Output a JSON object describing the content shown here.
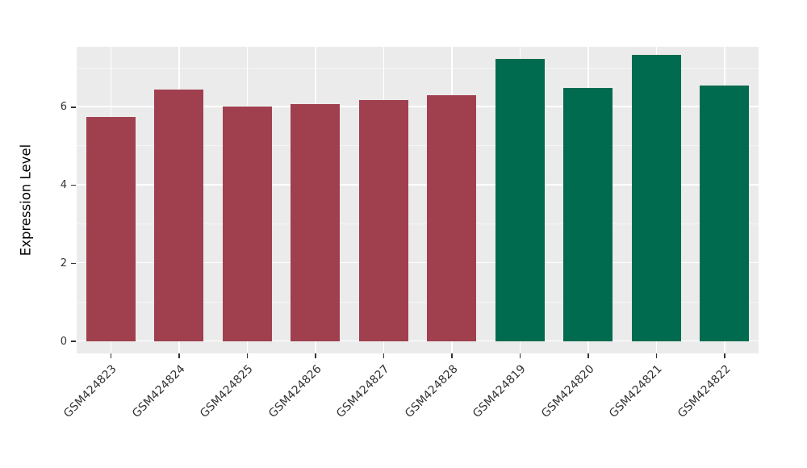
{
  "chart_data": {
    "type": "bar",
    "title": "",
    "xlabel": "",
    "ylabel": "Expression Level",
    "categories": [
      "GSM424823",
      "GSM424824",
      "GSM424825",
      "GSM424826",
      "GSM424827",
      "GSM424828",
      "GSM424819",
      "GSM424820",
      "GSM424821",
      "GSM424822"
    ],
    "values": [
      5.75,
      6.45,
      6.02,
      6.08,
      6.18,
      6.3,
      7.25,
      6.5,
      7.35,
      6.55
    ],
    "bar_colors": [
      "#A0404E",
      "#A0404E",
      "#A0404E",
      "#A0404E",
      "#A0404E",
      "#A0404E",
      "#006B4F",
      "#006B4F",
      "#006B4F",
      "#006B4F"
    ],
    "group_colors": {
      "left_group": "#A0404E",
      "right_group": "#006B4F"
    },
    "ylim": [
      0,
      7.55
    ],
    "yticks": [
      0,
      2,
      4,
      6
    ],
    "yticks_minor": [
      1,
      3,
      5,
      7
    ],
    "grid": true,
    "legend": false,
    "panel_background": "#EBEBEB",
    "grid_color": "#FFFFFF",
    "axis_text_color": "#333333"
  }
}
